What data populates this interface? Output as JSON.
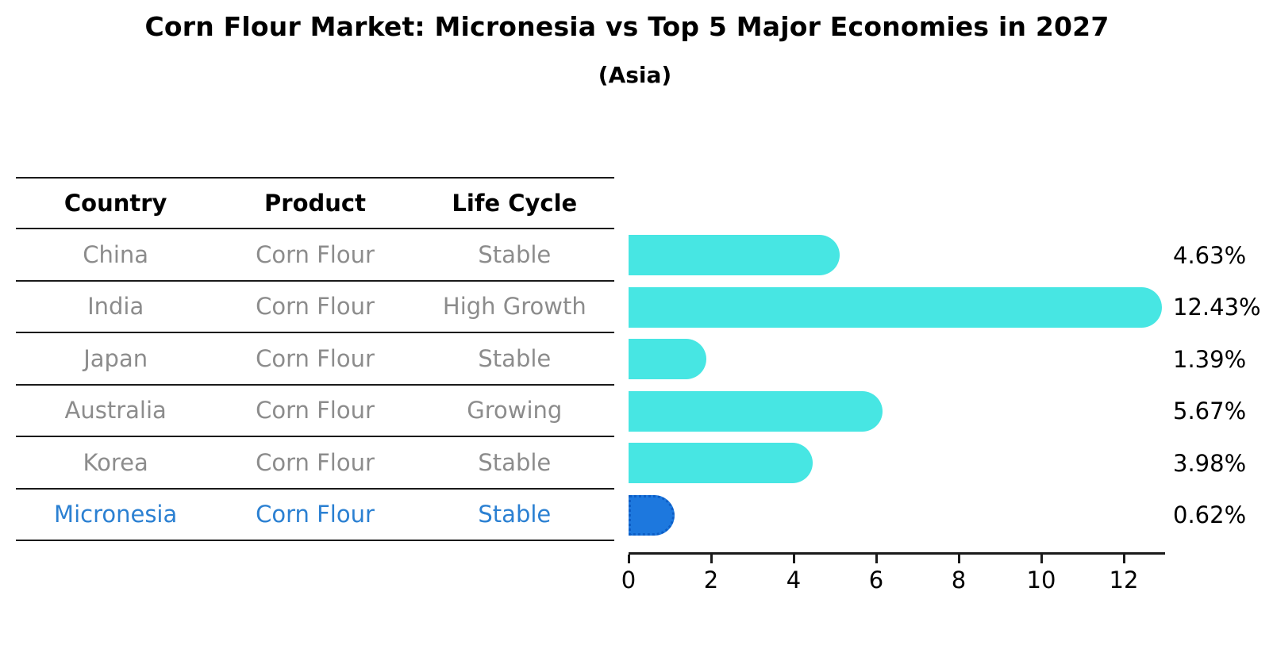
{
  "title": "Corn Flour Market: Micronesia vs Top 5 Major Economies in 2027",
  "subtitle": "(Asia)",
  "table": {
    "headers": [
      "Country",
      "Product",
      "Life Cycle"
    ],
    "rows": [
      {
        "country": "China",
        "product": "Corn Flour",
        "life_cycle": "Stable",
        "highlighted": false
      },
      {
        "country": "India",
        "product": "Corn Flour",
        "life_cycle": "High Growth",
        "highlighted": false
      },
      {
        "country": "Japan",
        "product": "Corn Flour",
        "life_cycle": "Stable",
        "highlighted": false
      },
      {
        "country": "Australia",
        "product": "Corn Flour",
        "life_cycle": "Growing",
        "highlighted": false
      },
      {
        "country": "Korea",
        "product": "Corn Flour",
        "life_cycle": "Stable",
        "highlighted": false
      },
      {
        "country": "Micronesia",
        "product": "Corn Flour",
        "life_cycle": "Stable",
        "highlighted": true
      }
    ]
  },
  "chart_data": {
    "type": "bar",
    "orientation": "horizontal",
    "title": "Corn Flour Market: Micronesia vs Top 5 Major Economies in 2027",
    "subtitle": "(Asia)",
    "categories": [
      "China",
      "India",
      "Japan",
      "Australia",
      "Korea",
      "Micronesia"
    ],
    "values": [
      4.63,
      12.43,
      1.39,
      5.67,
      3.98,
      0.62
    ],
    "value_labels": [
      "4.63%",
      "12.43%",
      "1.39%",
      "5.67%",
      "3.98%",
      "0.62%"
    ],
    "xlabel": "",
    "ylabel": "",
    "xlim": [
      0,
      13
    ],
    "x_ticks": [
      0,
      2,
      4,
      6,
      8,
      10,
      12
    ],
    "grid": false,
    "legend": false,
    "bar_color": "#47e6e3",
    "highlight_color": "#1d78de",
    "highlight_index": 5,
    "highlight_style": "dotted-edge"
  }
}
